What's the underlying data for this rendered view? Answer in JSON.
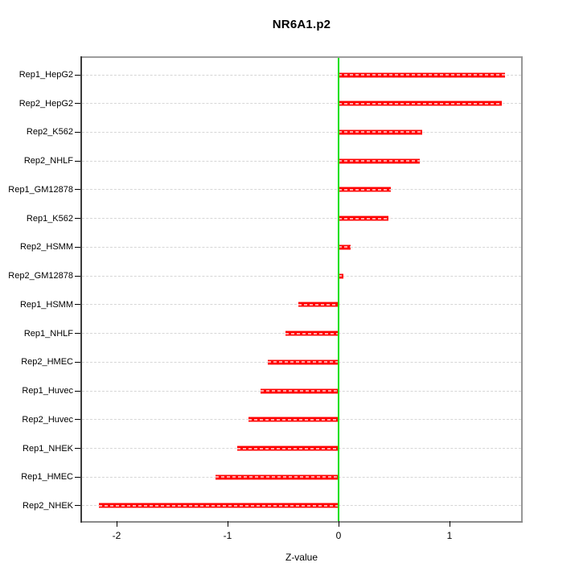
{
  "title": "NR6A1.p2",
  "xlabel": "Z-value",
  "chart_data": {
    "type": "bar",
    "orientation": "horizontal",
    "title": "NR6A1.p2",
    "xlabel": "Z-value",
    "ylabel": "",
    "categories": [
      "Rep1_HepG2",
      "Rep2_HepG2",
      "Rep2_K562",
      "Rep2_NHLF",
      "Rep1_GM12878",
      "Rep1_K562",
      "Rep2_HSMM",
      "Rep2_GM12878",
      "Rep1_HSMM",
      "Rep1_NHLF",
      "Rep2_HMEC",
      "Rep1_Huvec",
      "Rep2_Huvec",
      "Rep1_NHEK",
      "Rep1_HMEC",
      "Rep2_NHEK"
    ],
    "values": [
      1.5,
      1.47,
      0.75,
      0.73,
      0.47,
      0.45,
      0.11,
      0.04,
      -0.36,
      -0.48,
      -0.64,
      -0.7,
      -0.81,
      -0.91,
      -1.11,
      -2.16
    ],
    "x_ticks": [
      {
        "value": -2,
        "label": "-2"
      },
      {
        "value": -1,
        "label": "-1"
      },
      {
        "value": 0,
        "label": "0"
      },
      {
        "value": 1,
        "label": "1"
      }
    ],
    "xlim": [
      -2.31,
      1.65
    ],
    "grid": "dashed-horizontal",
    "legend": "none",
    "bar_color": "#ff0000",
    "bar_stripe_color": "#ffa8a8",
    "zero_line_color": "#00e000",
    "gridline_color": "#d6d6d6"
  }
}
